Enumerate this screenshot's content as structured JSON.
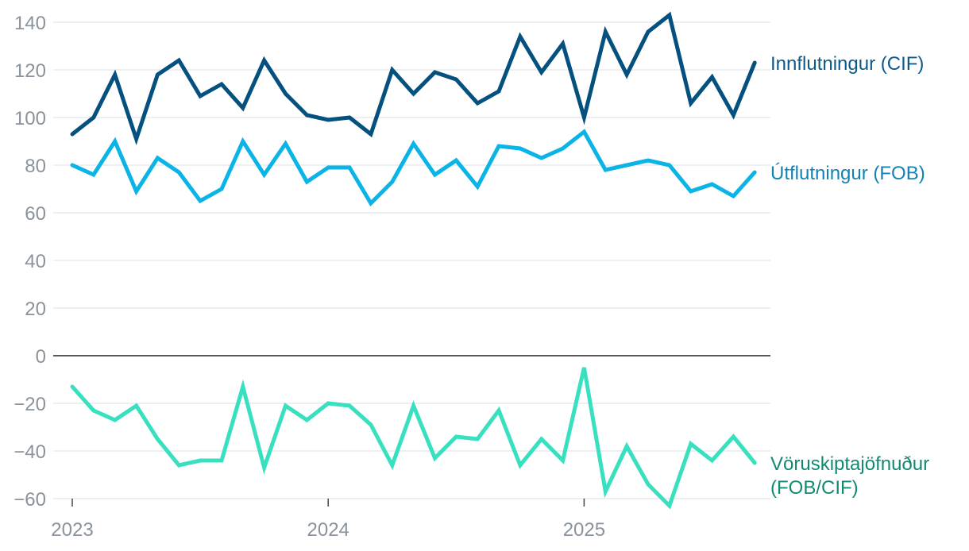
{
  "chart_data": {
    "type": "line",
    "x": [
      "2023-01",
      "2023-02",
      "2023-03",
      "2023-04",
      "2023-05",
      "2023-06",
      "2023-07",
      "2023-08",
      "2023-09",
      "2023-10",
      "2023-11",
      "2023-12",
      "2024-01",
      "2024-02",
      "2024-03",
      "2024-04",
      "2024-05",
      "2024-06",
      "2024-07",
      "2024-08",
      "2024-09",
      "2024-10",
      "2024-11",
      "2024-12",
      "2025-01",
      "2025-02",
      "2025-03",
      "2025-04",
      "2025-05",
      "2025-06",
      "2025-07",
      "2025-08",
      "2025-09"
    ],
    "x_ticks": [
      "2023",
      "2024",
      "2025"
    ],
    "y_ticks": [
      "140",
      "120",
      "100",
      "80",
      "60",
      "40",
      "20",
      "0",
      "−20",
      "−40",
      "−60"
    ],
    "ylim": [
      -62,
      143
    ],
    "grid": true,
    "series": [
      {
        "name": "Innflutningur (CIF)",
        "color": "#04507f",
        "label_color": "#0d5a8a",
        "values": [
          93,
          100,
          118,
          91,
          118,
          124,
          109,
          114,
          104,
          124,
          110,
          101,
          99,
          100,
          93,
          120,
          110,
          119,
          116,
          106,
          111,
          134,
          119,
          131,
          100,
          136,
          118,
          136,
          143,
          106,
          117,
          101,
          123
        ]
      },
      {
        "name": "Útflutningur (FOB)",
        "color": "#0bb4e6",
        "label_color": "#1283b5",
        "values": [
          80,
          76,
          90,
          69,
          83,
          77,
          65,
          70,
          90,
          76,
          89,
          73,
          79,
          79,
          64,
          73,
          89,
          76,
          82,
          71,
          88,
          87,
          83,
          87,
          94,
          78,
          80,
          82,
          80,
          69,
          72,
          67,
          77
        ]
      },
      {
        "name": "Vöruskiptajöfnuður (FOB/CIF)",
        "name_lines": [
          "Vöruskiptajöfnuður",
          "(FOB/CIF)"
        ],
        "color": "#38e0c0",
        "label_color": "#128a72",
        "values": [
          -13,
          -23,
          -27,
          -21,
          -35,
          -46,
          -44,
          -44,
          -13,
          -47,
          -21,
          -27,
          -20,
          -21,
          -29,
          -46,
          -21,
          -43,
          -34,
          -35,
          -23,
          -46,
          -35,
          -44,
          -5,
          -57,
          -38,
          -54,
          -63,
          -37,
          -44,
          -34,
          -45
        ]
      }
    ]
  }
}
